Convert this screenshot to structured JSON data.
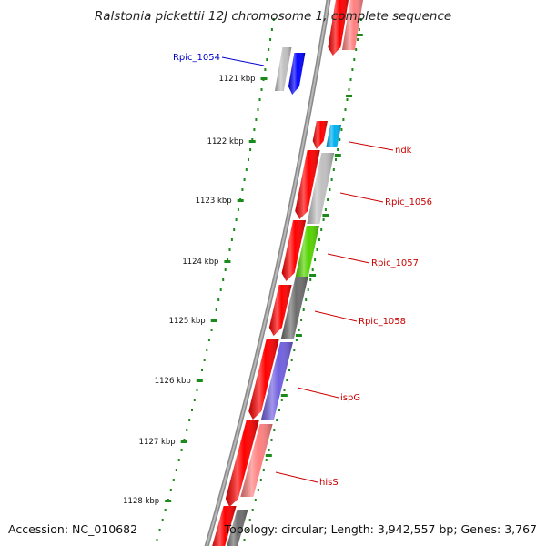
{
  "title": "Ralstonia pickettii 12J chromosome 1, complete sequence",
  "footer": {
    "accession": "Accession: NC_010682",
    "topology": "Topology: circular; Length: 3,942,557 bp; Genes: 3,767"
  },
  "colors": {
    "forward_red": "#ff0000",
    "light_red": "#ff8080",
    "blue": "#0000ff",
    "gray_light": "#c0c0c0",
    "gray_dark": "#6e6e6e",
    "cyan": "#00b0f0",
    "green": "#55d400",
    "purple": "#7060e0",
    "ruler_green": "#1a8a1a"
  },
  "ruler_labels": [
    "1121 kbp",
    "1122 kbp",
    "1123 kbp",
    "1124 kbp",
    "1125 kbp",
    "1126 kbp",
    "1127 kbp",
    "1128 kbp"
  ],
  "gene_labels": [
    {
      "text": "Rpic_1054",
      "color": "#0000cc"
    },
    {
      "text": "ndk",
      "color": "#cc0000"
    },
    {
      "text": "Rpic_1056",
      "color": "#cc0000"
    },
    {
      "text": "Rpic_1057",
      "color": "#cc0000"
    },
    {
      "text": "Rpic_1058",
      "color": "#cc0000"
    },
    {
      "text": "ispG",
      "color": "#cc0000"
    },
    {
      "text": "hisS",
      "color": "#cc0000"
    }
  ]
}
